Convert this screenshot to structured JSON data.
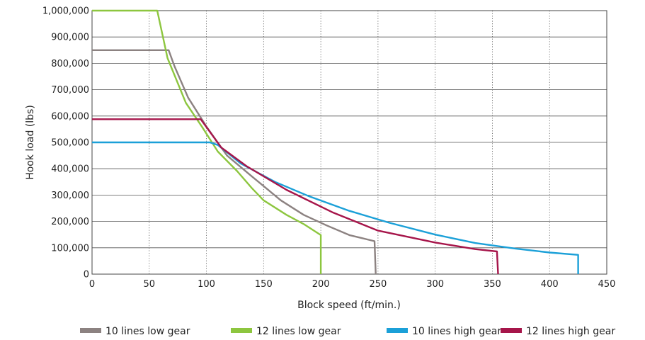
{
  "chart_data": {
    "type": "line",
    "title": "",
    "xlabel": "Block speed (ft/min.)",
    "ylabel": "Hook load (lbs)",
    "xlim": [
      0,
      450
    ],
    "ylim": [
      0,
      1000000
    ],
    "x_ticks": [
      0,
      50,
      100,
      150,
      200,
      250,
      300,
      350,
      400,
      450
    ],
    "x_tick_labels": [
      "0",
      "50",
      "100",
      "150",
      "200",
      "250",
      "300",
      "350",
      "400",
      "450"
    ],
    "y_ticks": [
      0,
      100000,
      200000,
      300000,
      400000,
      500000,
      600000,
      700000,
      800000,
      900000,
      1000000
    ],
    "y_tick_labels": [
      "0",
      "100,000",
      "200,000",
      "300,000",
      "400,000",
      "500,000",
      "600,000",
      "700,000",
      "800,000",
      "900,000",
      "1,000,000"
    ],
    "grid": {
      "horizontal": "solid",
      "vertical": "dotted"
    },
    "legend_position": "bottom",
    "series": [
      {
        "name": "10 lines low gear",
        "color": "#8c8281",
        "points": [
          [
            0,
            850000
          ],
          [
            67,
            850000
          ],
          [
            72,
            790000
          ],
          [
            84,
            670000
          ],
          [
            100,
            560000
          ],
          [
            118,
            450000
          ],
          [
            140,
            370000
          ],
          [
            165,
            280000
          ],
          [
            185,
            225000
          ],
          [
            205,
            185000
          ],
          [
            225,
            148000
          ],
          [
            247,
            125000
          ],
          [
            248,
            0
          ]
        ]
      },
      {
        "name": "12 lines low gear",
        "color": "#8dc63f",
        "points": [
          [
            0,
            1000000
          ],
          [
            57,
            1000000
          ],
          [
            66,
            820000
          ],
          [
            82,
            650000
          ],
          [
            96,
            560000
          ],
          [
            110,
            465000
          ],
          [
            127,
            390000
          ],
          [
            140,
            325000
          ],
          [
            150,
            280000
          ],
          [
            170,
            225000
          ],
          [
            185,
            190000
          ],
          [
            200,
            148000
          ],
          [
            200,
            0
          ]
        ]
      },
      {
        "name": "10 lines high gear",
        "color": "#1ba0d8",
        "points": [
          [
            0,
            500000
          ],
          [
            103,
            500000
          ],
          [
            110,
            490000
          ],
          [
            130,
            420000
          ],
          [
            160,
            350000
          ],
          [
            190,
            295000
          ],
          [
            225,
            240000
          ],
          [
            260,
            195000
          ],
          [
            300,
            150000
          ],
          [
            335,
            118000
          ],
          [
            370,
            97000
          ],
          [
            400,
            82000
          ],
          [
            425,
            73000
          ],
          [
            425,
            0
          ]
        ]
      },
      {
        "name": "12 lines high gear",
        "color": "#a6154a",
        "points": [
          [
            0,
            588000
          ],
          [
            95,
            588000
          ],
          [
            113,
            480000
          ],
          [
            135,
            410000
          ],
          [
            170,
            320000
          ],
          [
            210,
            235000
          ],
          [
            250,
            165000
          ],
          [
            300,
            120000
          ],
          [
            335,
            95000
          ],
          [
            354,
            86000
          ],
          [
            355,
            0
          ]
        ]
      }
    ]
  }
}
